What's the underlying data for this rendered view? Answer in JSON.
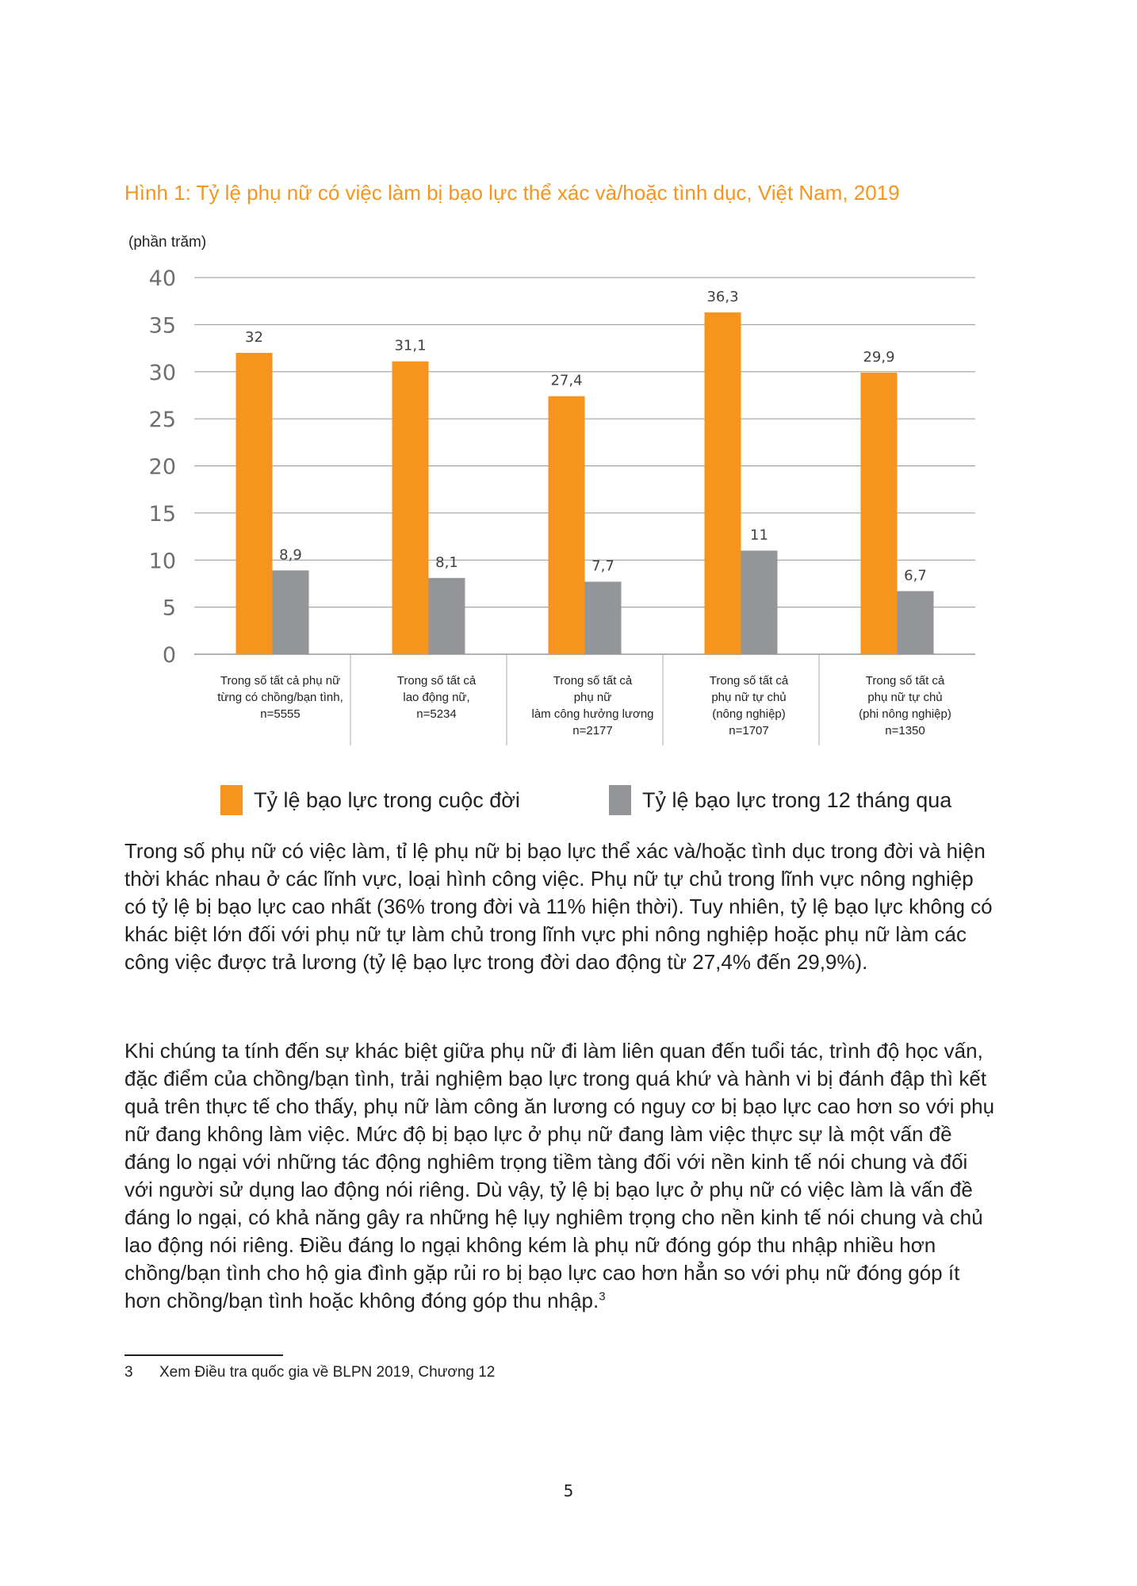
{
  "figure": {
    "title": "Hình 1: Tỷ lệ phụ nữ có việc làm bị bạo lực thể xác và/hoặc tình dục, Việt Nam, 2019",
    "y_unit": "(phần trăm)"
  },
  "chart_data": {
    "type": "bar",
    "ylim": [
      0,
      40
    ],
    "yticks": [
      "40",
      "35",
      "30",
      "25",
      "20",
      "15",
      "10",
      "5",
      "0"
    ],
    "grid": true,
    "legend_position": "bottom",
    "categories": [
      [
        "Trong số tất cả phụ nữ",
        "từng có chồng/bạn tình,",
        "n=5555"
      ],
      [
        "Trong số tất cả",
        "lao động nữ,",
        "n=5234"
      ],
      [
        "Trong số tất cả",
        "phụ nữ",
        "làm công hưởng lương",
        "n=2177"
      ],
      [
        "Trong số tất cả",
        "phụ nữ tự chủ",
        "(nông nghiệp)",
        "n=1707"
      ],
      [
        "Trong số tất cả",
        "phụ nữ tự chủ",
        "(phi nông nghiệp)",
        "n=1350"
      ]
    ],
    "series": [
      {
        "name": "Tỷ lệ bạo lực trong cuộc đời",
        "color": "#f7941d",
        "values": [
          32,
          31.1,
          27.4,
          36.3,
          29.9
        ],
        "labels": [
          "32",
          "31,1",
          "27,4",
          "36,3",
          "29,9"
        ]
      },
      {
        "name": "Tỷ lệ bạo lực trong 12 tháng qua",
        "color": "#939598",
        "values": [
          8.9,
          8.1,
          7.7,
          11,
          6.7
        ],
        "labels": [
          "8,9",
          "8,1",
          "7,7",
          "11",
          "6,7"
        ]
      }
    ]
  },
  "paragraphs": [
    "Trong số phụ nữ có việc làm, tỉ lệ phụ nữ bị bạo lực thể xác và/hoặc tình dục trong đời và hiện thời khác nhau ở các lĩnh vực, loại hình công việc. Phụ nữ tự chủ trong lĩnh vực nông nghiệp có tỷ lệ bị bạo lực cao nhất (36% trong đời và 11% hiện thời). Tuy nhiên, tỷ lệ bạo lực không có khác biệt lớn đối với phụ nữ tự làm chủ trong lĩnh vực phi nông nghiệp hoặc phụ nữ làm các công việc được trả lương (tỷ lệ bạo lực trong đời dao động từ 27,4% đến 29,9%).",
    "Khi chúng ta tính đến sự khác biệt giữa phụ nữ đi làm liên quan đến tuổi tác, trình độ học vấn, đặc điểm của chồng/bạn tình, trải nghiệm bạo lực trong quá khứ và hành vi bị đánh đập thì kết quả trên thực tế cho thấy, phụ nữ làm công ăn lương có nguy cơ bị bạo lực cao hơn so với phụ nữ đang không làm việc. Mức độ bị bạo lực ở phụ nữ đang làm việc thực sự là một vấn đề đáng lo ngại với những tác động nghiêm trọng tiềm tàng đối với nền kinh tế nói chung và đối với người sử dụng lao động nói riêng. Dù vậy, tỷ lệ bị bạo lực ở phụ nữ có việc làm là vấn đề đáng lo ngại, có khả năng gây ra những hệ lụy nghiêm trọng cho nền kinh tế nói chung và chủ lao động nói riêng. Điều đáng lo ngại không kém là phụ nữ đóng góp thu nhập nhiều hơn chồng/bạn tình cho hộ gia đình gặp rủi ro bị bạo lực cao hơn hẳn so với phụ nữ đóng góp ít hơn chồng/bạn tình hoặc không đóng góp thu nhập."
  ],
  "footnote_ref": "3",
  "footnote": {
    "number": "3",
    "text": "Xem Điều tra quốc gia về BLPN 2019, Chương 12"
  },
  "page_number": "5"
}
